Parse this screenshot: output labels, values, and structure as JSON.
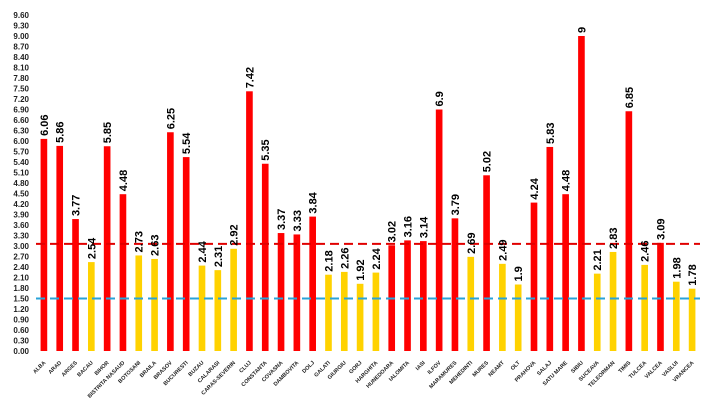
{
  "chart_data": {
    "type": "bar",
    "categories": [
      "ALBA",
      "ARAD",
      "ARGES",
      "BACAU",
      "BIHOR",
      "BISTRITA NASAUD",
      "BOTOSANI",
      "BRAILA",
      "BRASOV",
      "BUCURESTI",
      "BUZAU",
      "CALARASI",
      "CARAS-SEVERIN",
      "CLUJ",
      "CONSTANTA",
      "COVASNA",
      "DAMBOVITA",
      "DOLJ",
      "GALATI",
      "GIURGIU",
      "GORJ",
      "HARGHITA",
      "HUNEDOARA",
      "IALOMITA",
      "IASI",
      "ILFOV",
      "MARAMURES",
      "MEHEDINTI",
      "MURES",
      "NEAMT",
      "OLT",
      "PRAHOVA",
      "SALAJ",
      "SATU MARE",
      "SIBIU",
      "SUCEAVA",
      "TELEORMAN",
      "TIMIS",
      "TULCEA",
      "VALCEA",
      "VASLUI",
      "VRANCEA"
    ],
    "values": [
      6.06,
      5.86,
      3.77,
      2.54,
      5.85,
      4.48,
      2.73,
      2.63,
      6.25,
      5.54,
      2.44,
      2.31,
      2.92,
      7.42,
      5.35,
      3.37,
      3.33,
      3.84,
      2.18,
      2.26,
      1.92,
      2.24,
      3.02,
      3.16,
      3.14,
      6.9,
      3.79,
      2.69,
      5.02,
      2.49,
      1.9,
      4.24,
      5.83,
      4.48,
      9,
      2.21,
      2.83,
      6.85,
      2.46,
      3.09,
      1.98,
      1.78
    ],
    "value_labels": [
      "6.06",
      "5.86",
      "3.77",
      "2.54",
      "5.85",
      "4.48",
      "2.73",
      "2.63",
      "6.25",
      "5.54",
      "2.44",
      "2.31",
      "2.92",
      "7.42",
      "5.35",
      "3.37",
      "3.33",
      "3.84",
      "2.18",
      "2.26",
      "1.92",
      "2.24",
      "3.02",
      "3.16",
      "3.14",
      "6.9",
      "3.79",
      "2.69",
      "5.02",
      "2.49",
      "1.9",
      "4.24",
      "5.83",
      "4.48",
      "9",
      "2.21",
      "2.83",
      "6.85",
      "2.46",
      "3.09",
      "1.98",
      "1.78"
    ],
    "colors": [
      "red",
      "red",
      "red",
      "yellow",
      "red",
      "red",
      "yellow",
      "yellow",
      "red",
      "red",
      "yellow",
      "yellow",
      "yellow",
      "red",
      "red",
      "red",
      "red",
      "red",
      "yellow",
      "yellow",
      "yellow",
      "yellow",
      "red",
      "red",
      "red",
      "red",
      "red",
      "yellow",
      "red",
      "yellow",
      "yellow",
      "red",
      "red",
      "red",
      "red",
      "yellow",
      "yellow",
      "red",
      "yellow",
      "red",
      "yellow",
      "yellow"
    ],
    "color_map": {
      "red": "#ff0000",
      "yellow": "#ffd200"
    },
    "reference_lines": [
      {
        "value": 3.06,
        "color": "#e00000",
        "style": "dashed",
        "x_start_category": 0
      },
      {
        "value": 1.5,
        "color": "#2aa3d8",
        "style": "dashed",
        "x_start_category": 0
      }
    ],
    "yticks": [
      "0.00",
      "0.30",
      "0.60",
      "0.90",
      "1.20",
      "1.50",
      "1.80",
      "2.10",
      "2.40",
      "2.70",
      "3.00",
      "3.30",
      "3.60",
      "3.90",
      "4.20",
      "4.50",
      "4.80",
      "5.10",
      "5.40",
      "5.70",
      "6.00",
      "6.30",
      "6.60",
      "6.90",
      "7.20",
      "7.50",
      "7.80",
      "8.10",
      "8.40",
      "8.70",
      "9.00",
      "9.30",
      "9.60"
    ],
    "ylim": [
      0,
      9.6
    ],
    "title": "",
    "xlabel": "",
    "ylabel": "",
    "grid": false,
    "legend": "none"
  }
}
